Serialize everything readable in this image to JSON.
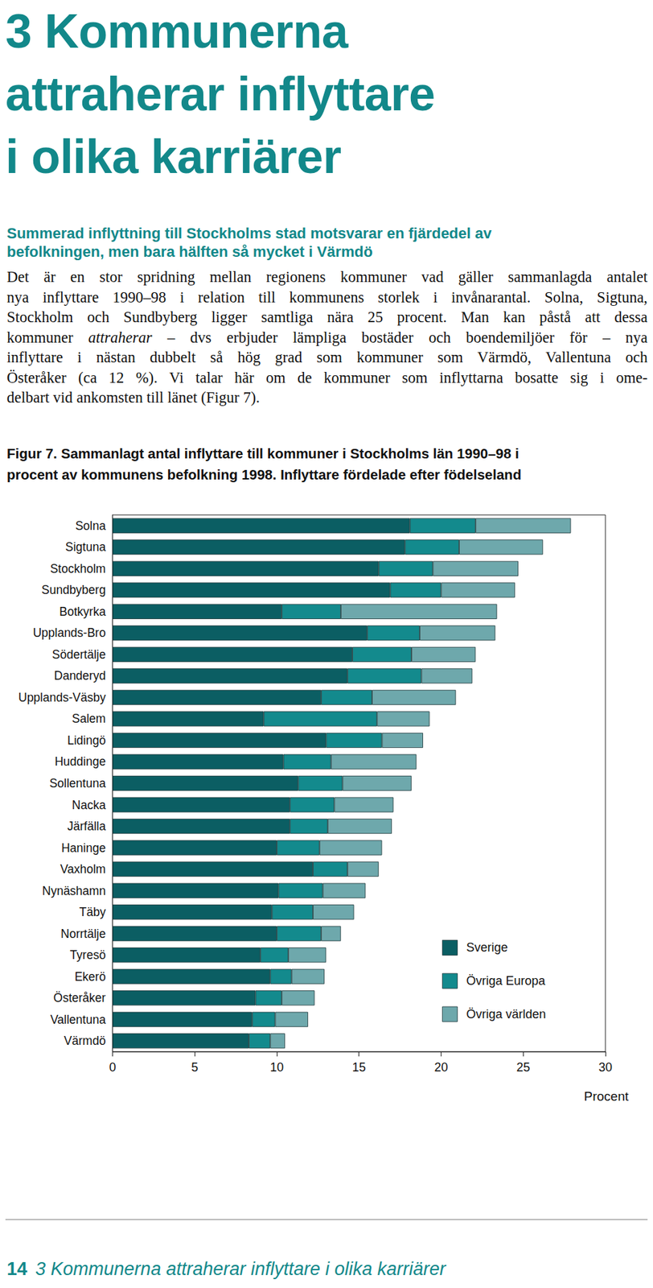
{
  "page": {
    "heading": [
      "3 Kommunerna",
      "attraherar inflyttare",
      "i olika karriärer"
    ],
    "subheading": [
      "Summerad inflyttning till Stockholms stad motsvarar en fjärdedel av",
      "befolkningen, men bara hälften så mycket i Värmdö"
    ],
    "body": [
      [
        {
          "text": "Det är en stor spridning mellan regionens kommuner vad gäller sammanlagda antalet"
        }
      ],
      [
        {
          "text": "nya inflyttare 1990–98 i relation till kommunens storlek i invånarantal. Solna, Sigtuna,"
        }
      ],
      [
        {
          "text": "Stockholm och Sundbyberg ligger samtliga nära 25 procent. Man kan påstå att dessa"
        }
      ],
      [
        {
          "text": "kommuner "
        },
        {
          "text": "attraherar",
          "italic": true
        },
        {
          "text": " – dvs erbjuder lämpliga bostäder och boendemiljöer för – nya"
        }
      ],
      [
        {
          "text": "inflyttare i nästan dubbelt så hög grad som kommuner som Värmdö, Vallentuna och"
        }
      ],
      [
        {
          "text": "Österåker (ca 12 %). Vi talar här om de kommuner som inflyttarna bosatte sig i ome-"
        }
      ],
      [
        {
          "text": "delbart vid ankomsten till länet (Figur 7)."
        }
      ]
    ],
    "caption": [
      "Figur 7. Sammanlagt antal inflyttare till kommuner i Stockholms län 1990–98 i",
      "procent av kommunens befolkning 1998. Inflyttare fördelade efter födelseland"
    ],
    "footer": {
      "page_number": "14",
      "text": "3 Kommunerna attraherar inflyttare i olika karriärer"
    }
  },
  "chart_data": {
    "type": "bar",
    "orientation": "horizontal",
    "stacked": true,
    "grid": false,
    "legend": "bottom-right",
    "x_label": "Procent",
    "xlim": [
      0,
      30
    ],
    "xticks": [
      0,
      5,
      10,
      15,
      20,
      25,
      30
    ],
    "categories": [
      "Solna",
      "Sigtuna",
      "Stockholm",
      "Sundbyberg",
      "Botkyrka",
      "Upplands-Bro",
      "Södertälje",
      "Danderyd",
      "Upplands-Väsby",
      "Salem",
      "Lidingö",
      "Huddinge",
      "Sollentuna",
      "Nacka",
      "Järfälla",
      "Haninge",
      "Vaxholm",
      "Nynäshamn",
      "Täby",
      "Norrtälje",
      "Tyresö",
      "Ekerö",
      "Österåker",
      "Vallentuna",
      "Värmdö"
    ],
    "series": [
      {
        "name": "Sverige",
        "color": "#0b5e63",
        "values": [
          18.1,
          17.8,
          16.2,
          16.9,
          10.3,
          15.5,
          14.6,
          14.3,
          12.7,
          9.2,
          13.0,
          10.4,
          11.3,
          10.8,
          10.8,
          10.0,
          12.2,
          10.1,
          9.7,
          10.0,
          9.0,
          9.6,
          8.7,
          8.5,
          8.3
        ]
      },
      {
        "name": "Övriga Europa",
        "color": "#138a8d",
        "values": [
          4.0,
          3.3,
          3.3,
          3.1,
          3.6,
          3.2,
          3.6,
          4.5,
          3.1,
          6.9,
          3.4,
          2.9,
          2.7,
          2.7,
          2.3,
          2.6,
          2.1,
          2.7,
          2.5,
          2.7,
          1.7,
          1.3,
          1.6,
          1.4,
          1.3
        ]
      },
      {
        "name": "Övriga världen",
        "color": "#6ea8ac",
        "values": [
          5.8,
          5.1,
          5.2,
          4.5,
          9.5,
          4.6,
          3.9,
          3.1,
          5.1,
          3.2,
          2.5,
          5.2,
          4.2,
          3.6,
          3.9,
          3.8,
          1.9,
          2.6,
          2.5,
          1.2,
          2.3,
          2.0,
          2.0,
          2.0,
          0.9
        ]
      }
    ]
  }
}
